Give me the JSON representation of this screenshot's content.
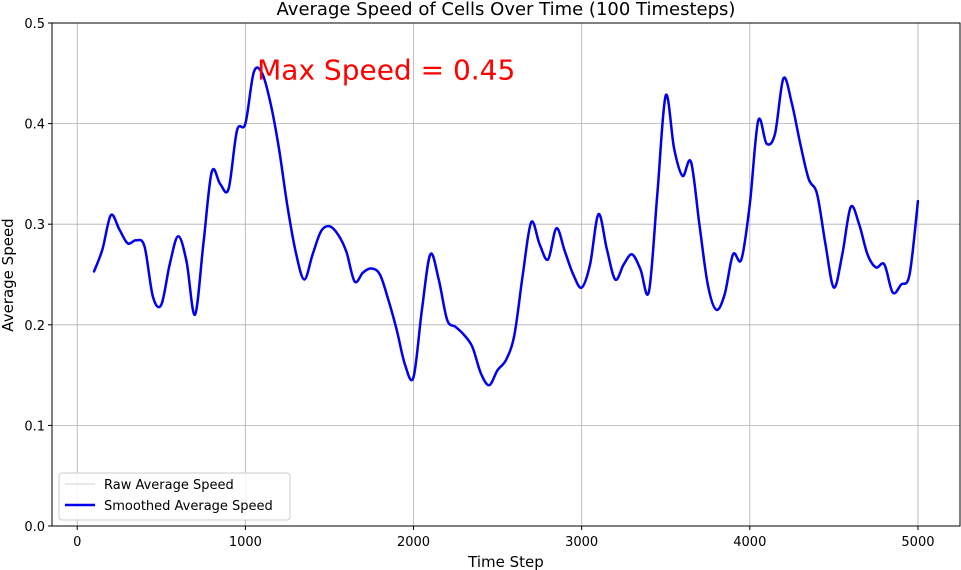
{
  "chart_data": {
    "type": "line",
    "title": "Average Speed of Cells Over Time (100 Timesteps)",
    "xlabel": "Time Step",
    "ylabel": "Average Speed",
    "xlim": [
      -150,
      5250
    ],
    "ylim": [
      0,
      0.5
    ],
    "xticks": [
      0,
      1000,
      2000,
      3000,
      4000,
      5000
    ],
    "xtick_labels": [
      "0",
      "1000",
      "2000",
      "3000",
      "4000",
      "5000"
    ],
    "yticks": [
      0,
      0.1,
      0.2,
      0.3,
      0.4,
      0.5
    ],
    "ytick_labels": [
      "0.0",
      "0.1",
      "0.2",
      "0.3",
      "0.4",
      "0.5"
    ],
    "grid": true,
    "legend": {
      "position": "lower-left",
      "entries": [
        "Raw Average Speed",
        "Smoothed Average Speed"
      ]
    },
    "annotation": {
      "text": "Max Speed = 0.45",
      "x": 1070,
      "y": 0.456,
      "color": "#ff0000"
    },
    "series": [
      {
        "name": "Raw Average Speed",
        "color": "#d3d3d3",
        "x": [
          100,
          150,
          200,
          250,
          300,
          350,
          400,
          450,
          500,
          550,
          600,
          650,
          700,
          750,
          800,
          850,
          900,
          950,
          1000,
          1050,
          1100,
          1150,
          1200,
          1250,
          1300,
          1350,
          1400,
          1450,
          1500,
          1550,
          1600,
          1650,
          1700,
          1750,
          1800,
          1850,
          1900,
          1950,
          2000,
          2050,
          2100,
          2150,
          2200,
          2250,
          2300,
          2350,
          2400,
          2450,
          2500,
          2550,
          2600,
          2650,
          2700,
          2750,
          2800,
          2850,
          2900,
          2950,
          3000,
          3050,
          3100,
          3150,
          3200,
          3250,
          3300,
          3350,
          3400,
          3450,
          3500,
          3550,
          3600,
          3650,
          3700,
          3750,
          3800,
          3850,
          3900,
          3950,
          4000,
          4050,
          4100,
          4150,
          4200,
          4250,
          4300,
          4350,
          4400,
          4450,
          4500,
          4550,
          4600,
          4650,
          4700,
          4750,
          4800,
          4850,
          4900,
          4950,
          5000
        ],
        "values": [
          0.253,
          0.275,
          0.309,
          0.295,
          0.281,
          0.284,
          0.278,
          0.228,
          0.22,
          0.26,
          0.288,
          0.263,
          0.21,
          0.28,
          0.352,
          0.34,
          0.335,
          0.393,
          0.4,
          0.451,
          0.45,
          0.42,
          0.375,
          0.318,
          0.272,
          0.245,
          0.27,
          0.293,
          0.298,
          0.29,
          0.273,
          0.243,
          0.252,
          0.256,
          0.25,
          0.225,
          0.195,
          0.16,
          0.148,
          0.215,
          0.27,
          0.245,
          0.205,
          0.198,
          0.19,
          0.178,
          0.152,
          0.14,
          0.155,
          0.165,
          0.19,
          0.25,
          0.302,
          0.28,
          0.265,
          0.296,
          0.273,
          0.25,
          0.237,
          0.26,
          0.31,
          0.275,
          0.245,
          0.26,
          0.27,
          0.255,
          0.233,
          0.33,
          0.428,
          0.375,
          0.348,
          0.362,
          0.3,
          0.24,
          0.215,
          0.23,
          0.27,
          0.265,
          0.32,
          0.403,
          0.38,
          0.39,
          0.445,
          0.42,
          0.38,
          0.345,
          0.33,
          0.28,
          0.237,
          0.27,
          0.317,
          0.3,
          0.27,
          0.257,
          0.26,
          0.232,
          0.24,
          0.25,
          0.323
        ]
      },
      {
        "name": "Smoothed Average Speed",
        "color": "#0000ee",
        "x": [
          100,
          150,
          200,
          250,
          300,
          350,
          400,
          450,
          500,
          550,
          600,
          650,
          700,
          750,
          800,
          850,
          900,
          950,
          1000,
          1050,
          1100,
          1150,
          1200,
          1250,
          1300,
          1350,
          1400,
          1450,
          1500,
          1550,
          1600,
          1650,
          1700,
          1750,
          1800,
          1850,
          1900,
          1950,
          2000,
          2050,
          2100,
          2150,
          2200,
          2250,
          2300,
          2350,
          2400,
          2450,
          2500,
          2550,
          2600,
          2650,
          2700,
          2750,
          2800,
          2850,
          2900,
          2950,
          3000,
          3050,
          3100,
          3150,
          3200,
          3250,
          3300,
          3350,
          3400,
          3450,
          3500,
          3550,
          3600,
          3650,
          3700,
          3750,
          3800,
          3850,
          3900,
          3950,
          4000,
          4050,
          4100,
          4150,
          4200,
          4250,
          4300,
          4350,
          4400,
          4450,
          4500,
          4550,
          4600,
          4650,
          4700,
          4750,
          4800,
          4850,
          4900,
          4950,
          5000
        ],
        "values": [
          0.253,
          0.275,
          0.309,
          0.295,
          0.281,
          0.284,
          0.278,
          0.228,
          0.22,
          0.26,
          0.288,
          0.263,
          0.21,
          0.28,
          0.352,
          0.34,
          0.335,
          0.393,
          0.4,
          0.451,
          0.45,
          0.42,
          0.375,
          0.318,
          0.272,
          0.245,
          0.27,
          0.293,
          0.298,
          0.29,
          0.273,
          0.243,
          0.252,
          0.256,
          0.25,
          0.225,
          0.195,
          0.16,
          0.148,
          0.215,
          0.27,
          0.245,
          0.205,
          0.198,
          0.19,
          0.178,
          0.152,
          0.14,
          0.155,
          0.165,
          0.19,
          0.25,
          0.302,
          0.28,
          0.265,
          0.296,
          0.273,
          0.25,
          0.237,
          0.26,
          0.31,
          0.275,
          0.245,
          0.26,
          0.27,
          0.255,
          0.233,
          0.33,
          0.428,
          0.375,
          0.348,
          0.362,
          0.3,
          0.24,
          0.215,
          0.23,
          0.27,
          0.265,
          0.32,
          0.403,
          0.38,
          0.39,
          0.445,
          0.42,
          0.38,
          0.345,
          0.33,
          0.28,
          0.237,
          0.27,
          0.317,
          0.3,
          0.27,
          0.257,
          0.26,
          0.232,
          0.24,
          0.25,
          0.323
        ]
      }
    ]
  }
}
